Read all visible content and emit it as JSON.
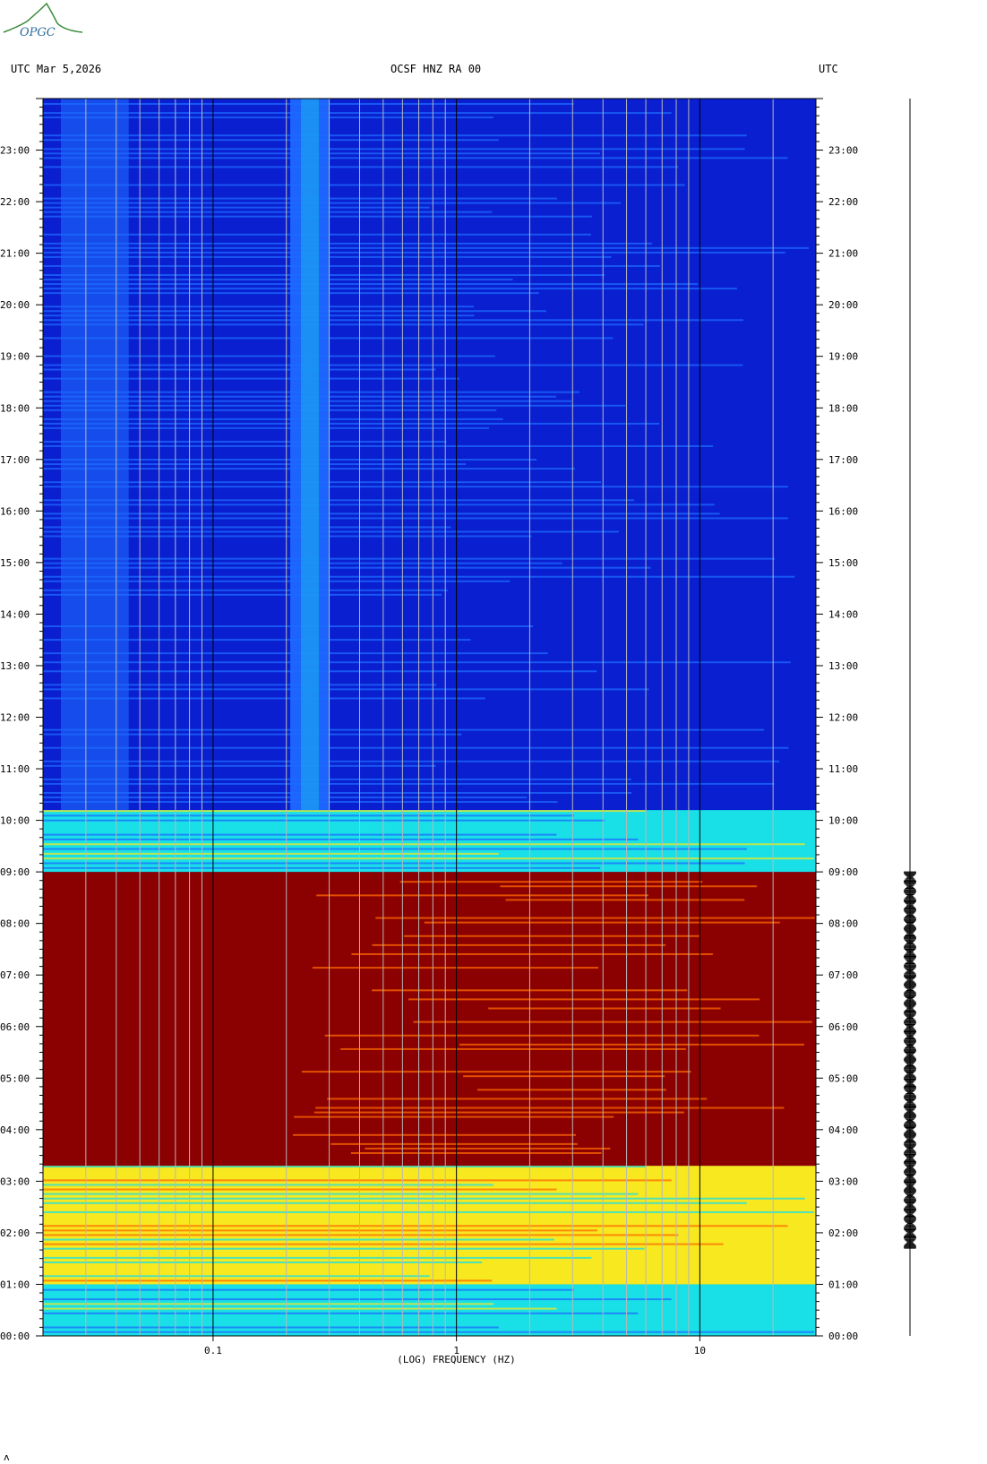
{
  "header": {
    "left_label": "UTC  Mar 5,2026",
    "title": "OCSF HNZ RA 00",
    "right_label": "UTC"
  },
  "logo": {
    "text": "OPGC"
  },
  "footer_mark": "ʌ",
  "colors": {
    "quiet": "#0a1fcf",
    "low": "#1e6bff",
    "medium": "#19e0e6",
    "high": "#f7e81f",
    "very_high": "#ff6a00",
    "saturated": "#8b0000"
  },
  "chart_data": {
    "type": "heatmap",
    "title": "OCSF HNZ RA 00",
    "xlabel": "(LOG) FREQUENCY (HZ)",
    "x_scale": "log",
    "xlim": [
      0.02,
      30
    ],
    "x_tick_labels": [
      "0.1",
      "1",
      "10"
    ],
    "x_ticks": [
      0.1,
      1,
      10
    ],
    "ylim": [
      0,
      24
    ],
    "y_tick_labels": [
      "00:00",
      "01:00",
      "02:00",
      "03:00",
      "04:00",
      "05:00",
      "06:00",
      "07:00",
      "08:00",
      "09:00",
      "10:00",
      "11:00",
      "12:00",
      "13:00",
      "14:00",
      "15:00",
      "16:00",
      "17:00",
      "18:00",
      "19:00",
      "20:00",
      "21:00",
      "22:00",
      "23:00"
    ],
    "y_ticks": [
      0,
      1,
      2,
      3,
      4,
      5,
      6,
      7,
      8,
      9,
      10,
      11,
      12,
      13,
      14,
      15,
      16,
      17,
      18,
      19,
      20,
      21,
      22,
      23
    ],
    "intensity_by_hour": [
      {
        "start": 0.0,
        "end": 1.0,
        "level": "medium"
      },
      {
        "start": 1.0,
        "end": 3.3,
        "level": "high"
      },
      {
        "start": 3.3,
        "end": 9.0,
        "level": "saturated"
      },
      {
        "start": 9.0,
        "end": 10.2,
        "level": "medium"
      },
      {
        "start": 10.2,
        "end": 24.0,
        "level": "quiet"
      }
    ],
    "bright_bands_hz": [
      0.25
    ],
    "trace_active_hours": [
      1.7,
      9.0
    ]
  }
}
